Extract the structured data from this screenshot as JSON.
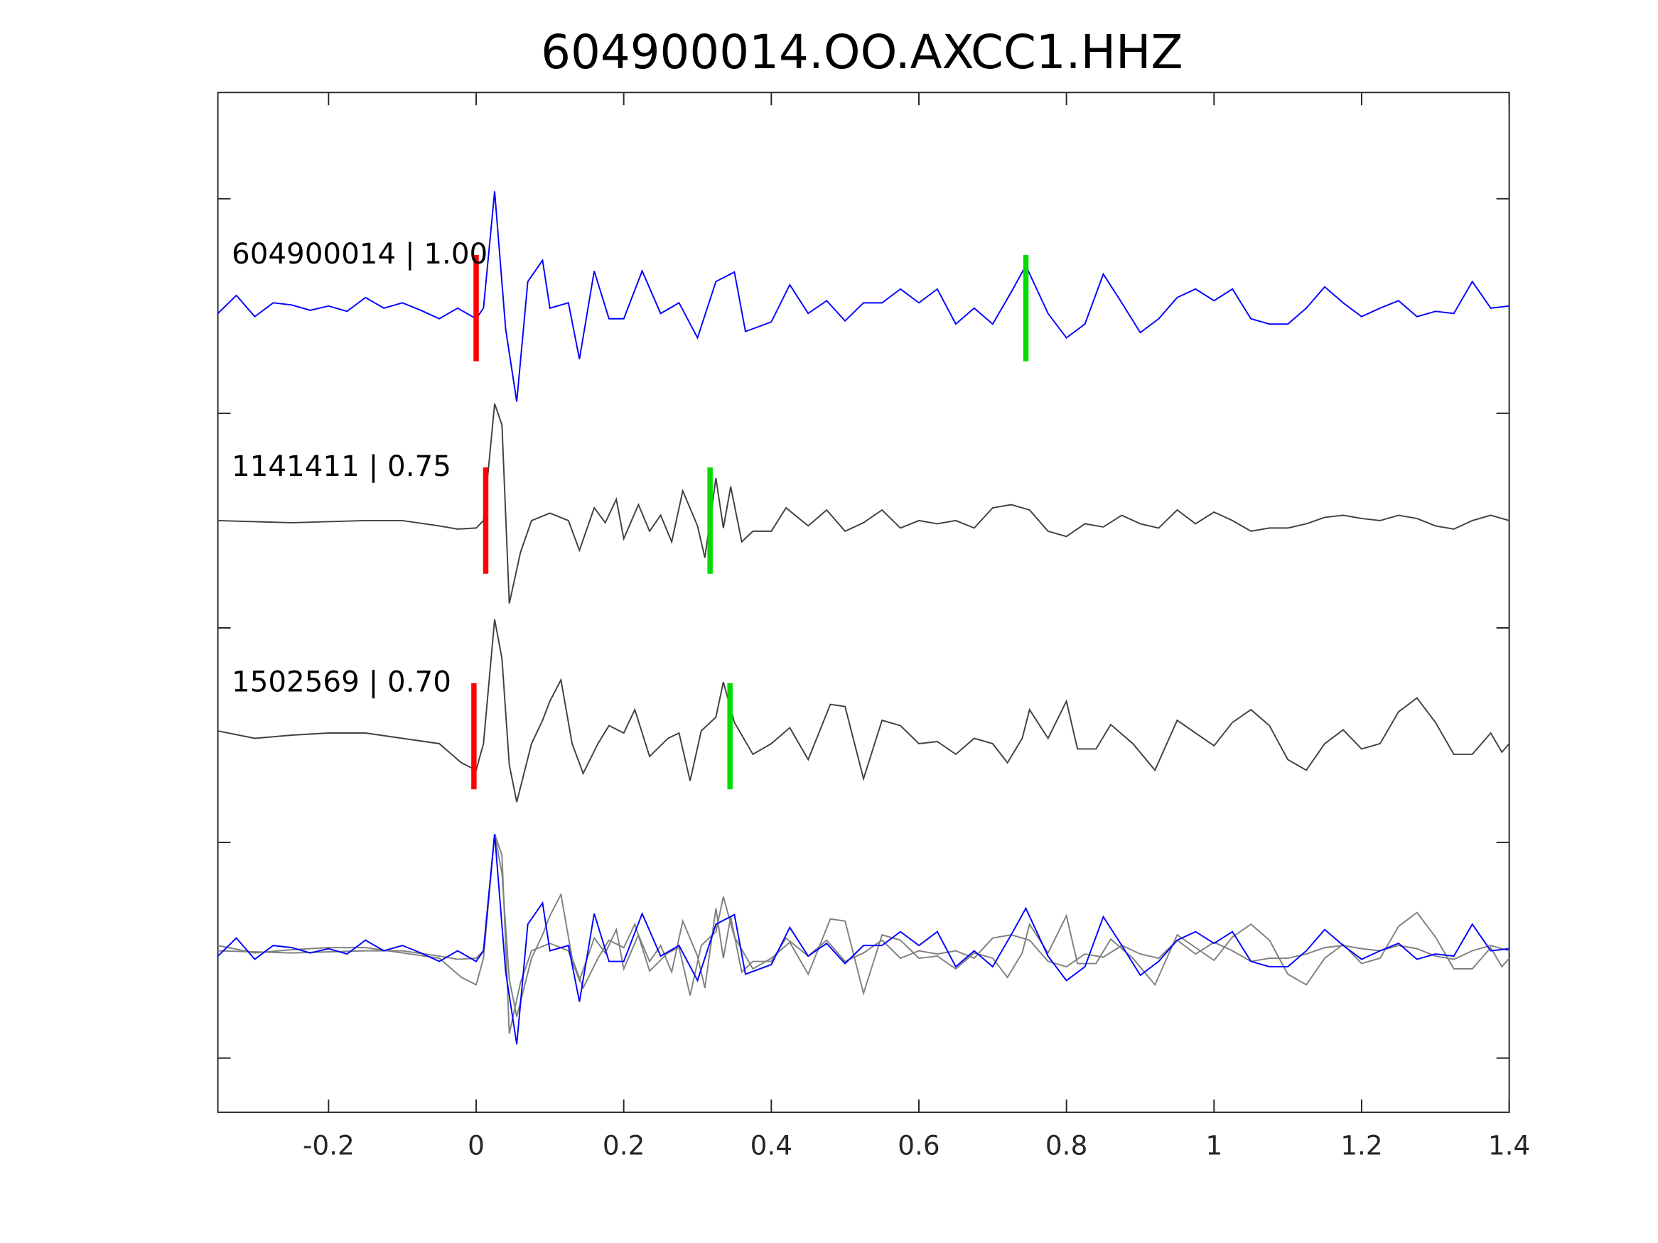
{
  "chart_data": {
    "type": "line",
    "title": "604900014.OO.AXCC1.HHZ",
    "xlabel": "",
    "ylabel": "",
    "xlim": [
      -0.35,
      1.4
    ],
    "xticks": [
      "-0.2",
      "0",
      "0.2",
      "0.4",
      "0.6",
      "0.8",
      "1",
      "1.2",
      "1.4"
    ],
    "xtick_values": [
      -0.2,
      0,
      0.2,
      0.4,
      0.6,
      0.8,
      1,
      1.2,
      1.4
    ],
    "grid": false,
    "colors": {
      "main": "#0000ff",
      "other": "#404040",
      "overlay_other": "#808080",
      "p_pick": "#ff0000",
      "s_pick": "#00dd00"
    },
    "series": [
      {
        "name": "604900014",
        "label": "604900014 | 1.00",
        "cc": 1.0,
        "color": "#0000ff",
        "p_pick": 0.0,
        "s_pick": 0.745,
        "t": [
          -0.35,
          -0.325,
          -0.3,
          -0.275,
          -0.25,
          -0.225,
          -0.2,
          -0.175,
          -0.15,
          -0.125,
          -0.1,
          -0.075,
          -0.05,
          -0.025,
          0,
          0.01,
          0.025,
          0.04,
          0.055,
          0.07,
          0.09,
          0.1,
          0.125,
          0.14,
          0.16,
          0.18,
          0.2,
          0.225,
          0.25,
          0.275,
          0.3,
          0.325,
          0.35,
          0.365,
          0.4,
          0.425,
          0.45,
          0.475,
          0.5,
          0.525,
          0.55,
          0.575,
          0.6,
          0.625,
          0.65,
          0.675,
          0.7,
          0.725,
          0.745,
          0.775,
          0.8,
          0.825,
          0.85,
          0.875,
          0.9,
          0.925,
          0.95,
          0.975,
          1.0,
          1.025,
          1.05,
          1.075,
          1.1,
          1.125,
          1.15,
          1.175,
          1.2,
          1.225,
          1.25,
          1.275,
          1.3,
          1.325,
          1.35,
          1.375,
          1.4
        ],
        "amp": [
          -0.05,
          0.12,
          -0.08,
          0.05,
          0.03,
          -0.02,
          0.02,
          -0.03,
          0.1,
          0,
          0.05,
          -0.02,
          -0.1,
          0,
          -0.1,
          0,
          1.1,
          -0.2,
          -0.88,
          0.25,
          0.45,
          0,
          0.05,
          -0.48,
          0.35,
          -0.1,
          -0.1,
          0.35,
          -0.05,
          0.05,
          -0.28,
          0.25,
          0.34,
          -0.22,
          -0.13,
          0.22,
          -0.05,
          0.07,
          -0.12,
          0.05,
          0.05,
          0.18,
          0.05,
          0.18,
          -0.15,
          0,
          -0.15,
          0.15,
          0.4,
          -0.05,
          -0.28,
          -0.15,
          0.32,
          0.05,
          -0.23,
          -0.1,
          0.1,
          0.18,
          0.07,
          0.18,
          -0.1,
          -0.15,
          -0.15,
          0,
          0.2,
          0.05,
          -0.08,
          0,
          0.07,
          -0.08,
          -0.03,
          -0.05,
          0.25,
          0,
          0.02
        ]
      },
      {
        "name": "1141411",
        "label": "1141411 | 0.75",
        "cc": 0.75,
        "color": "#404040",
        "p_pick": 0.013,
        "s_pick": 0.317,
        "t": [
          -0.35,
          -0.25,
          -0.15,
          -0.1,
          -0.05,
          -0.025,
          0,
          0.01,
          0.025,
          0.035,
          0.045,
          0.06,
          0.075,
          0.1,
          0.125,
          0.14,
          0.16,
          0.175,
          0.19,
          0.2,
          0.22,
          0.235,
          0.25,
          0.265,
          0.28,
          0.3,
          0.31,
          0.325,
          0.335,
          0.345,
          0.36,
          0.375,
          0.4,
          0.42,
          0.45,
          0.475,
          0.5,
          0.525,
          0.55,
          0.575,
          0.6,
          0.625,
          0.65,
          0.675,
          0.7,
          0.725,
          0.75,
          0.775,
          0.8,
          0.825,
          0.85,
          0.875,
          0.9,
          0.925,
          0.95,
          0.975,
          1.0,
          1.025,
          1.05,
          1.075,
          1.1,
          1.125,
          1.15,
          1.175,
          1.2,
          1.225,
          1.25,
          1.275,
          1.3,
          1.325,
          1.35,
          1.375,
          1.4
        ],
        "amp": [
          0,
          -0.02,
          0,
          0,
          -0.05,
          -0.08,
          -0.07,
          0,
          1.1,
          0.9,
          -0.78,
          -0.3,
          0,
          0.07,
          0,
          -0.28,
          0.12,
          -0.02,
          0.2,
          -0.17,
          0.15,
          -0.1,
          0.05,
          -0.2,
          0.28,
          -0.05,
          -0.35,
          0.4,
          -0.07,
          0.32,
          -0.2,
          -0.1,
          -0.1,
          0.12,
          -0.05,
          0.1,
          -0.1,
          -0.02,
          0.1,
          -0.07,
          0,
          -0.03,
          0,
          -0.07,
          0.12,
          0.15,
          0.1,
          -0.1,
          -0.15,
          -0.03,
          -0.06,
          0.05,
          -0.03,
          -0.07,
          0.1,
          -0.03,
          0.08,
          0,
          -0.1,
          -0.07,
          -0.07,
          -0.03,
          0.03,
          0.05,
          0.02,
          0,
          0.05,
          0.02,
          -0.05,
          -0.08,
          0,
          0.05,
          0
        ]
      },
      {
        "name": "1502569",
        "label": "1502569 | 0.70",
        "cc": 0.7,
        "color": "#404040",
        "p_pick": -0.003,
        "s_pick": 0.344,
        "t": [
          -0.35,
          -0.3,
          -0.25,
          -0.2,
          -0.15,
          -0.1,
          -0.05,
          -0.02,
          0,
          0.01,
          0.025,
          0.035,
          0.045,
          0.055,
          0.075,
          0.09,
          0.1,
          0.115,
          0.13,
          0.145,
          0.165,
          0.18,
          0.2,
          0.215,
          0.235,
          0.26,
          0.275,
          0.29,
          0.305,
          0.325,
          0.335,
          0.35,
          0.375,
          0.4,
          0.425,
          0.45,
          0.48,
          0.5,
          0.525,
          0.55,
          0.575,
          0.6,
          0.625,
          0.65,
          0.675,
          0.7,
          0.72,
          0.74,
          0.75,
          0.775,
          0.8,
          0.815,
          0.84,
          0.86,
          0.89,
          0.92,
          0.95,
          0.975,
          1.0,
          1.025,
          1.05,
          1.075,
          1.1,
          1.125,
          1.15,
          1.175,
          1.2,
          1.225,
          1.25,
          1.275,
          1.3,
          1.325,
          1.35,
          1.375,
          1.39,
          1.4
        ],
        "amp": [
          0.05,
          -0.02,
          0.01,
          0.03,
          0.03,
          -0.02,
          -0.07,
          -0.25,
          -0.32,
          -0.07,
          1.1,
          0.73,
          -0.27,
          -0.62,
          -0.07,
          0.15,
          0.33,
          0.53,
          -0.07,
          -0.35,
          -0.07,
          0.1,
          0.03,
          0.25,
          -0.19,
          -0.02,
          0.03,
          -0.42,
          0.05,
          0.18,
          0.51,
          0.13,
          -0.17,
          -0.07,
          0.08,
          -0.22,
          0.3,
          0.28,
          -0.4,
          0.15,
          0.1,
          -0.07,
          -0.05,
          -0.17,
          -0.02,
          -0.07,
          -0.25,
          -0.02,
          0.25,
          -0.02,
          0.33,
          -0.12,
          -0.12,
          0.11,
          -0.07,
          -0.32,
          0.15,
          0.03,
          -0.09,
          0.13,
          0.25,
          0.1,
          -0.22,
          -0.32,
          -0.07,
          0.06,
          -0.12,
          -0.07,
          0.23,
          0.36,
          0.13,
          -0.17,
          -0.17,
          0.03,
          -0.15,
          -0.07
        ]
      }
    ]
  }
}
